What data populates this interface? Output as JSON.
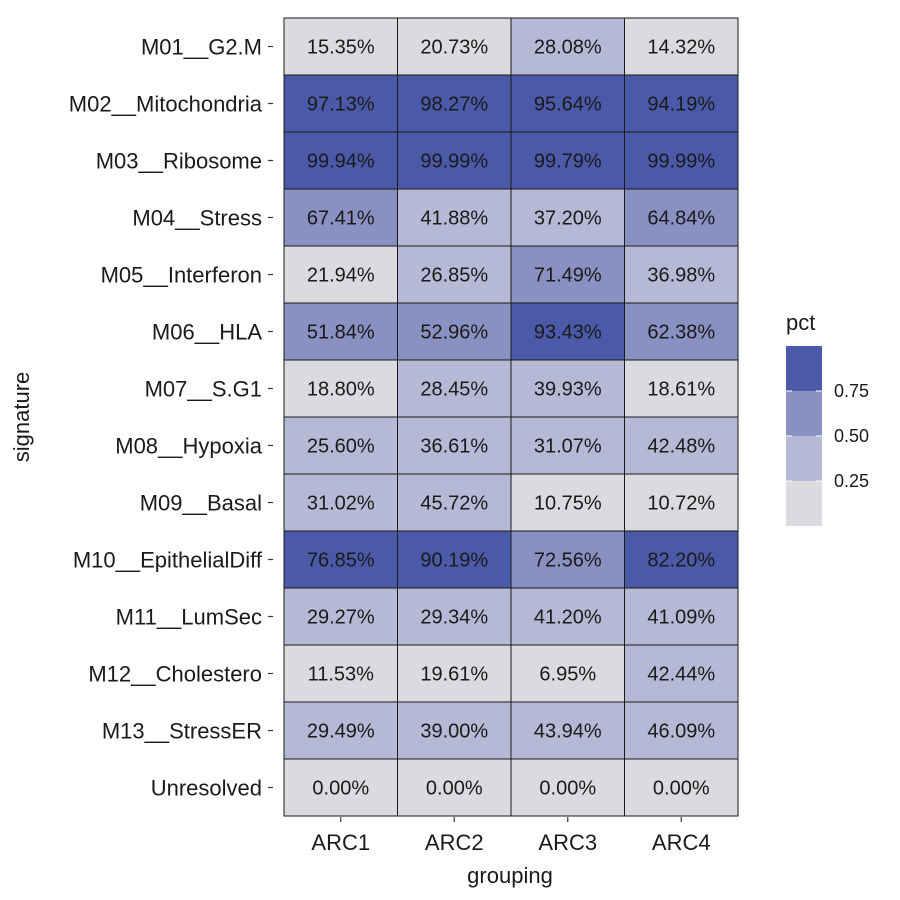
{
  "chart_data": {
    "type": "heatmap",
    "xlabel": "grouping",
    "ylabel": "signature",
    "categories": [
      "ARC1",
      "ARC2",
      "ARC3",
      "ARC4"
    ],
    "rows": [
      "M01__G2.M",
      "M02__Mitochondria",
      "M03__Ribosome",
      "M04__Stress",
      "M05__Interferon",
      "M06__HLA",
      "M07__S.G1",
      "M08__Hypoxia",
      "M09__Basal",
      "M10__EpithelialDiff",
      "M11__LumSec",
      "M12__Cholestero",
      "M13__StressER",
      "Unresolved"
    ],
    "values": [
      [
        0.1535,
        0.2073,
        0.2808,
        0.1432
      ],
      [
        0.9713,
        0.9827,
        0.9564,
        0.9419
      ],
      [
        0.9994,
        0.9999,
        0.9979,
        0.9999
      ],
      [
        0.6741,
        0.4188,
        0.372,
        0.6484
      ],
      [
        0.2194,
        0.2685,
        0.7149,
        0.3698
      ],
      [
        0.5184,
        0.5296,
        0.9343,
        0.6238
      ],
      [
        0.188,
        0.2845,
        0.3993,
        0.1861
      ],
      [
        0.256,
        0.3661,
        0.3107,
        0.4248
      ],
      [
        0.3102,
        0.4572,
        0.1075,
        0.1072
      ],
      [
        0.7685,
        0.9019,
        0.7256,
        0.822
      ],
      [
        0.2927,
        0.2934,
        0.412,
        0.4109
      ],
      [
        0.1153,
        0.1961,
        0.0695,
        0.4244
      ],
      [
        0.2949,
        0.39,
        0.4394,
        0.4609
      ],
      [
        0.0,
        0.0,
        0.0,
        0.0
      ]
    ],
    "labels": [
      [
        "15.35%",
        "20.73%",
        "28.08%",
        "14.32%"
      ],
      [
        "97.13%",
        "98.27%",
        "95.64%",
        "94.19%"
      ],
      [
        "99.94%",
        "99.99%",
        "99.79%",
        "99.99%"
      ],
      [
        "67.41%",
        "41.88%",
        "37.20%",
        "64.84%"
      ],
      [
        "21.94%",
        "26.85%",
        "71.49%",
        "36.98%"
      ],
      [
        "51.84%",
        "52.96%",
        "93.43%",
        "62.38%"
      ],
      [
        "18.80%",
        "28.45%",
        "39.93%",
        "18.61%"
      ],
      [
        "25.60%",
        "36.61%",
        "31.07%",
        "42.48%"
      ],
      [
        "31.02%",
        "45.72%",
        "10.75%",
        "10.72%"
      ],
      [
        "76.85%",
        "90.19%",
        "72.56%",
        "82.20%"
      ],
      [
        "29.27%",
        "29.34%",
        "41.20%",
        "41.09%"
      ],
      [
        "11.53%",
        "19.61%",
        "6.95%",
        "42.44%"
      ],
      [
        "29.49%",
        "39.00%",
        "43.94%",
        "46.09%"
      ],
      [
        "0.00%",
        "0.00%",
        "0.00%",
        "0.00%"
      ]
    ],
    "legend": {
      "title": "pct",
      "position": "right",
      "ticks": [
        0.75,
        0.5,
        0.25
      ],
      "tick_labels": [
        "0.75",
        "0.50",
        "0.25"
      ],
      "bins": [
        {
          "from": 0.75,
          "to": 1.0,
          "color": "#4a5aa8"
        },
        {
          "from": 0.5,
          "to": 0.75,
          "color": "#8990c2"
        },
        {
          "from": 0.25,
          "to": 0.5,
          "color": "#b6b9d6"
        },
        {
          "from": 0.0,
          "to": 0.25,
          "color": "#dadadf"
        }
      ]
    },
    "colors": {
      "cell_border": "#1a1a1a",
      "axis_tick": "#333333"
    },
    "grid": false
  }
}
